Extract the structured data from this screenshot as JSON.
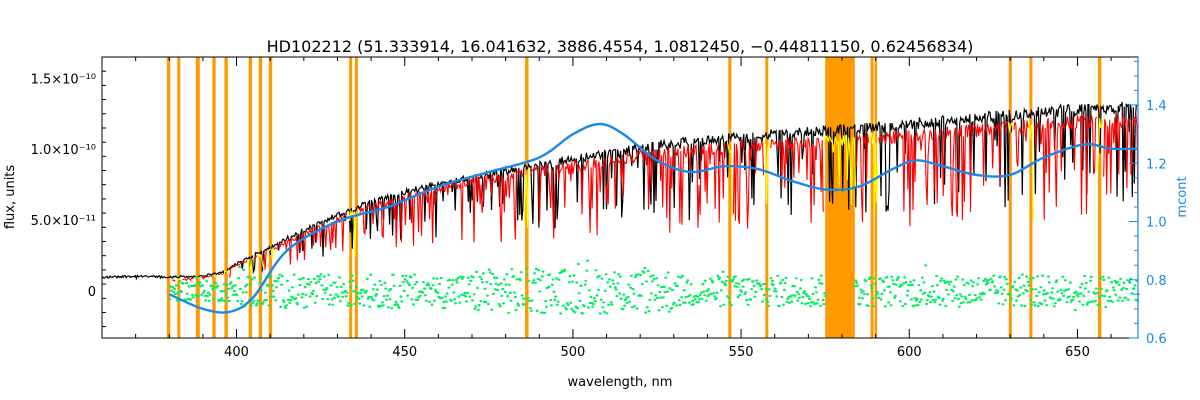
{
  "chart_data": {
    "type": "line",
    "title": "HD102212    (51.333914, 16.041632, 3886.4554, 1.0812450, −0.44811150, 0.62456834)",
    "xlabel": "wavelength, nm",
    "ylabel": "flux, units",
    "y2label": "mcont",
    "xlim": [
      360,
      668
    ],
    "ylim": [
      -3.3e-11,
      1.65e-10
    ],
    "y2lim": [
      0.6,
      1.565
    ],
    "x_ticks": [
      400,
      450,
      500,
      550,
      600,
      650
    ],
    "x_tick_labels": [
      "400",
      "450",
      "500",
      "550",
      "600",
      "650"
    ],
    "y_ticks": [
      0,
      5e-11,
      1e-10,
      1.5e-10
    ],
    "y_tick_labels": [
      "0",
      "5.0×10⁻¹¹",
      "1.0×10⁻¹⁰",
      "1.5×10⁻¹⁰"
    ],
    "y2_ticks": [
      0.6,
      0.8,
      1.0,
      1.2,
      1.4
    ],
    "y2_tick_labels": [
      "0.6",
      "0.8",
      "1.0",
      "1.2",
      "1.4"
    ],
    "grid": false,
    "masked_regions": [
      {
        "x0": 379.3,
        "x1": 380.3
      },
      {
        "x0": 382.4,
        "x1": 383.3
      },
      {
        "x0": 387.9,
        "x1": 389.1
      },
      {
        "x0": 392.8,
        "x1": 393.8
      },
      {
        "x0": 396.4,
        "x1": 397.4
      },
      {
        "x0": 403.6,
        "x1": 404.6
      },
      {
        "x0": 406.6,
        "x1": 407.6
      },
      {
        "x0": 409.6,
        "x1": 410.6
      },
      {
        "x0": 433.5,
        "x1": 434.4
      },
      {
        "x0": 435.2,
        "x1": 436.1
      },
      {
        "x0": 485.8,
        "x1": 486.8
      },
      {
        "x0": 546.2,
        "x1": 547.1
      },
      {
        "x0": 557.2,
        "x1": 558.1
      },
      {
        "x0": 575.0,
        "x1": 583.8
      },
      {
        "x0": 588.5,
        "x1": 589.4
      },
      {
        "x0": 589.7,
        "x1": 590.4
      },
      {
        "x0": 629.6,
        "x1": 630.5
      },
      {
        "x0": 635.7,
        "x1": 636.6
      },
      {
        "x0": 656.1,
        "x1": 657.1
      }
    ],
    "series": [
      {
        "color": "#000000",
        "axis": "left",
        "x": [
          360,
          370,
          380,
          390,
          395,
          400,
          410,
          420,
          430,
          440,
          450,
          460,
          470,
          480,
          490,
          500,
          510,
          520,
          530,
          540,
          550,
          560,
          570,
          580,
          590,
          600,
          610,
          620,
          630,
          640,
          650,
          660,
          668
        ],
        "values": [
          1e-11,
          1.1e-11,
          1e-11,
          1.1e-11,
          1.3e-11,
          2e-11,
          3.2e-11,
          4.4e-11,
          5.5e-11,
          6.5e-11,
          7.2e-11,
          7.8e-11,
          8.3e-11,
          8.7e-11,
          9.1e-11,
          9.6e-11,
          1e-10,
          1.04e-10,
          1.07e-10,
          1.1e-10,
          1.12e-10,
          1.14e-10,
          1.16e-10,
          1.17e-10,
          1.19e-10,
          1.21e-10,
          1.24e-10,
          1.26e-10,
          1.28e-10,
          1.3e-10,
          1.32e-10,
          1.33e-10,
          1.33e-10
        ]
      },
      {
        "color": "#ff0000",
        "axis": "left",
        "x": [
          380,
          390,
          395,
          400,
          410,
          420,
          430,
          440,
          450,
          460,
          470,
          480,
          490,
          500,
          510,
          520,
          530,
          540,
          550,
          560,
          570,
          580,
          590,
          600,
          610,
          620,
          630,
          640,
          650,
          660,
          668
        ],
        "values": [
          8e-12,
          1e-11,
          1.2e-11,
          1.9e-11,
          3e-11,
          4.2e-11,
          5.3e-11,
          6.2e-11,
          6.9e-11,
          7.5e-11,
          8e-11,
          8.4e-11,
          8.8e-11,
          9.2e-11,
          9.5e-11,
          9.9e-11,
          1.02e-10,
          1.04e-10,
          1.06e-10,
          1.08e-10,
          1.09e-10,
          1.1e-10,
          1.12e-10,
          1.14e-10,
          1.16e-10,
          1.18e-10,
          1.2e-10,
          1.22e-10,
          1.24e-10,
          1.25e-10,
          1.25e-10
        ]
      },
      {
        "color": "#00ee60",
        "axis": "left",
        "x": [
          380,
          400,
          450,
          500,
          550,
          600,
          650,
          668
        ],
        "values": [
          0,
          0,
          0,
          0,
          0,
          0,
          0,
          0
        ]
      },
      {
        "color": "#1e88e5",
        "axis": "right",
        "x": [
          380,
          390,
          398,
          405,
          415,
          430,
          445,
          460,
          475,
          490,
          500,
          508,
          515,
          525,
          535,
          545,
          555,
          565,
          575,
          585,
          595,
          602,
          610,
          620,
          630,
          640,
          652,
          660,
          668
        ],
        "values": [
          0.75,
          0.7,
          0.69,
          0.74,
          0.9,
          1.0,
          1.05,
          1.12,
          1.17,
          1.22,
          1.3,
          1.335,
          1.3,
          1.21,
          1.17,
          1.19,
          1.18,
          1.14,
          1.11,
          1.12,
          1.18,
          1.21,
          1.19,
          1.16,
          1.16,
          1.22,
          1.265,
          1.25,
          1.25
        ]
      }
    ]
  }
}
